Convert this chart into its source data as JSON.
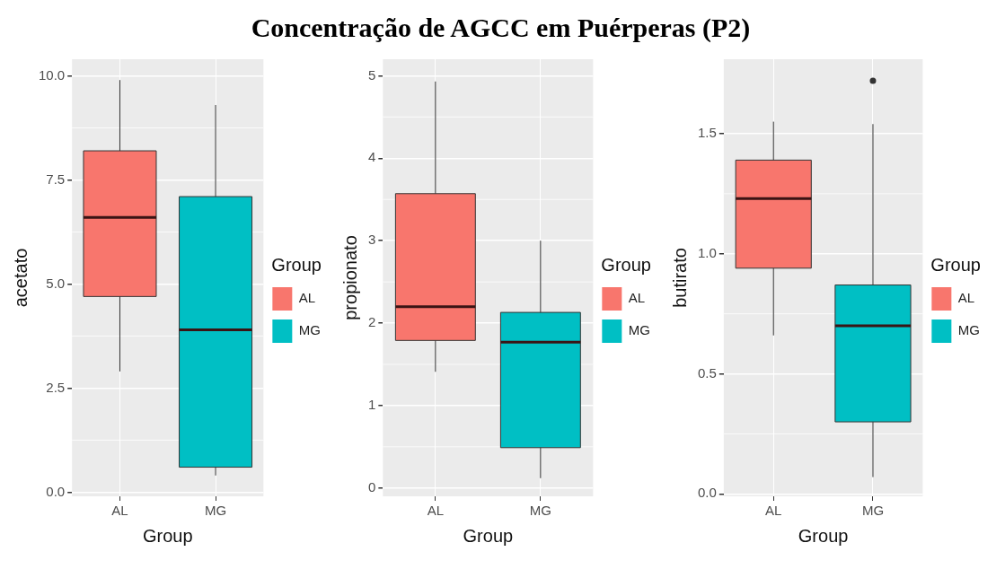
{
  "chart_data": [
    {
      "type": "box",
      "categories": [
        "AL",
        "MG"
      ],
      "xlabel": "Group",
      "ylabel": "acetato",
      "legend": "right",
      "legend_title": "Group",
      "grid": true,
      "ylim": [
        -0.1,
        10.4
      ],
      "yticks": [
        {
          "value": 0,
          "label": "0.0"
        },
        2.5,
        {
          "value": 5,
          "label": "5.0"
        },
        7.5,
        {
          "value": 10,
          "label": "10.0"
        }
      ],
      "series": [
        {
          "name": "AL",
          "color": "#f8766d",
          "boxes": [
            {
              "low": 2.9,
              "q1": 4.7,
              "median": 6.6,
              "q3": 8.2,
              "high": 9.9
            },
            null
          ]
        },
        {
          "name": "MG",
          "color": "#00bfc4",
          "boxes": [
            null,
            {
              "low": 0.4,
              "q1": 0.6,
              "median": 3.9,
              "q3": 7.1,
              "high": 9.3
            }
          ]
        }
      ]
    },
    {
      "type": "box",
      "title": "Concentração de AGCC em Puérperas (P2)",
      "categories": [
        "AL",
        "MG"
      ],
      "xlabel": "Group",
      "ylabel": "propionato",
      "legend": "right",
      "legend_title": "Group",
      "grid": true,
      "ylim": [
        -0.1,
        5.2
      ],
      "yticks": [
        0,
        1,
        2,
        3,
        4,
        5
      ],
      "series": [
        {
          "name": "AL",
          "color": "#f8766d",
          "boxes": [
            {
              "low": 1.41,
              "q1": 1.79,
              "median": 2.2,
              "q3": 3.57,
              "high": 4.93
            },
            null
          ]
        },
        {
          "name": "MG",
          "color": "#00bfc4",
          "boxes": [
            null,
            {
              "low": 0.12,
              "q1": 0.49,
              "median": 1.77,
              "q3": 2.13,
              "high": 3.0
            }
          ]
        }
      ]
    },
    {
      "type": "box",
      "categories": [
        "AL",
        "MG"
      ],
      "xlabel": "Group",
      "ylabel": "butirato",
      "legend": "right",
      "legend_title": "Group",
      "grid": true,
      "ylim": [
        -0.01,
        1.81
      ],
      "yticks": [
        {
          "value": 0,
          "label": "0.0"
        },
        0.5,
        {
          "value": 1,
          "label": "1.0"
        },
        1.5
      ],
      "series": [
        {
          "name": "AL",
          "color": "#f8766d",
          "boxes": [
            {
              "low": 0.66,
              "q1": 0.94,
              "median": 1.23,
              "q3": 1.39,
              "high": 1.55
            },
            null
          ]
        },
        {
          "name": "MG",
          "color": "#00bfc4",
          "boxes": [
            null,
            {
              "low": 0.07,
              "q1": 0.3,
              "median": 0.7,
              "q3": 0.87,
              "high": 1.54,
              "outliers": [
                1.72
              ]
            }
          ]
        }
      ]
    }
  ]
}
